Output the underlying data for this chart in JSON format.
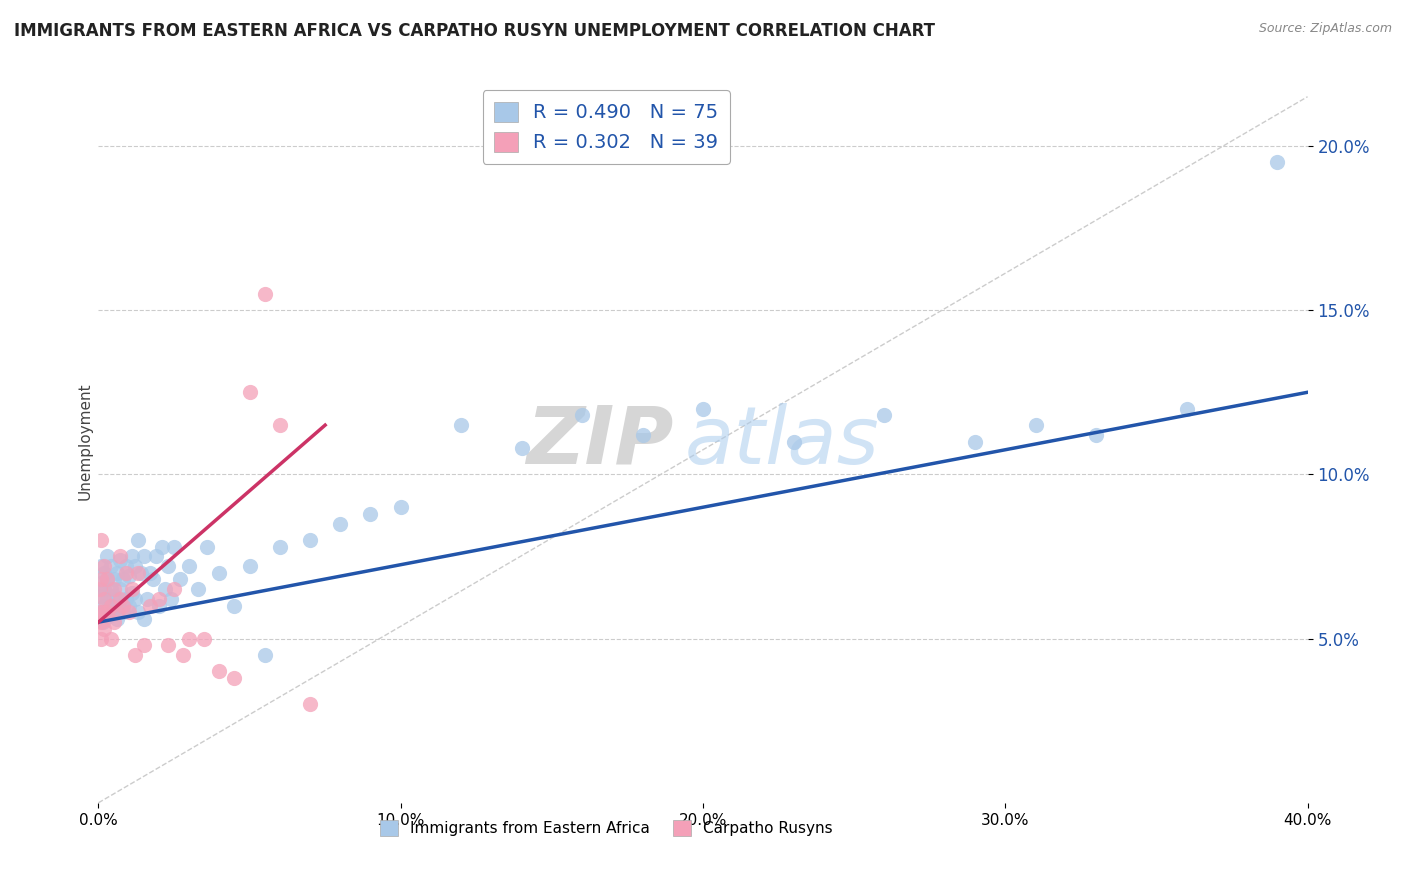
{
  "title": "IMMIGRANTS FROM EASTERN AFRICA VS CARPATHO RUSYN UNEMPLOYMENT CORRELATION CHART",
  "source_text": "Source: ZipAtlas.com",
  "xlabel_blue": "Immigrants from Eastern Africa",
  "xlabel_pink": "Carpatho Rusyns",
  "ylabel": "Unemployment",
  "R_blue": 0.49,
  "N_blue": 75,
  "R_pink": 0.302,
  "N_pink": 39,
  "blue_color": "#A8C8E8",
  "pink_color": "#F4A0B8",
  "trend_blue": "#2255AA",
  "trend_pink": "#CC3366",
  "watermark_zip": "ZIP",
  "watermark_atlas": "atlas",
  "xlim": [
    0.0,
    0.4
  ],
  "ylim": [
    0.0,
    0.22
  ],
  "x_ticks": [
    0.0,
    0.1,
    0.2,
    0.3,
    0.4
  ],
  "x_tick_labels": [
    "0.0%",
    "10.0%",
    "20.0%",
    "30.0%",
    "40.0%"
  ],
  "y_ticks": [
    0.05,
    0.1,
    0.15,
    0.2
  ],
  "y_tick_labels": [
    "5.0%",
    "10.0%",
    "15.0%",
    "20.0%"
  ],
  "blue_scatter_x": [
    0.0005,
    0.001,
    0.001,
    0.001,
    0.0015,
    0.002,
    0.002,
    0.002,
    0.0025,
    0.003,
    0.003,
    0.003,
    0.0035,
    0.004,
    0.004,
    0.004,
    0.005,
    0.005,
    0.005,
    0.006,
    0.006,
    0.006,
    0.007,
    0.007,
    0.007,
    0.008,
    0.008,
    0.009,
    0.009,
    0.01,
    0.01,
    0.011,
    0.011,
    0.012,
    0.012,
    0.013,
    0.013,
    0.014,
    0.015,
    0.015,
    0.016,
    0.017,
    0.018,
    0.019,
    0.02,
    0.021,
    0.022,
    0.023,
    0.024,
    0.025,
    0.027,
    0.03,
    0.033,
    0.036,
    0.04,
    0.045,
    0.05,
    0.055,
    0.06,
    0.07,
    0.08,
    0.09,
    0.1,
    0.12,
    0.14,
    0.16,
    0.18,
    0.2,
    0.23,
    0.26,
    0.29,
    0.31,
    0.33,
    0.36,
    0.39
  ],
  "blue_scatter_y": [
    0.063,
    0.058,
    0.067,
    0.072,
    0.055,
    0.06,
    0.065,
    0.07,
    0.058,
    0.062,
    0.068,
    0.075,
    0.057,
    0.06,
    0.065,
    0.072,
    0.058,
    0.063,
    0.068,
    0.056,
    0.062,
    0.07,
    0.059,
    0.065,
    0.074,
    0.058,
    0.068,
    0.062,
    0.072,
    0.06,
    0.069,
    0.064,
    0.075,
    0.062,
    0.072,
    0.058,
    0.08,
    0.07,
    0.056,
    0.075,
    0.062,
    0.07,
    0.068,
    0.075,
    0.06,
    0.078,
    0.065,
    0.072,
    0.062,
    0.078,
    0.068,
    0.072,
    0.065,
    0.078,
    0.07,
    0.06,
    0.072,
    0.045,
    0.078,
    0.08,
    0.085,
    0.088,
    0.09,
    0.115,
    0.108,
    0.118,
    0.112,
    0.12,
    0.11,
    0.118,
    0.11,
    0.115,
    0.112,
    0.12,
    0.195
  ],
  "pink_scatter_x": [
    0.0003,
    0.0005,
    0.0008,
    0.001,
    0.001,
    0.001,
    0.0015,
    0.002,
    0.002,
    0.002,
    0.003,
    0.003,
    0.004,
    0.004,
    0.005,
    0.005,
    0.006,
    0.007,
    0.007,
    0.008,
    0.009,
    0.01,
    0.011,
    0.012,
    0.013,
    0.015,
    0.017,
    0.02,
    0.023,
    0.025,
    0.028,
    0.03,
    0.035,
    0.04,
    0.045,
    0.05,
    0.055,
    0.06,
    0.07
  ],
  "pink_scatter_y": [
    0.058,
    0.065,
    0.05,
    0.055,
    0.068,
    0.08,
    0.058,
    0.053,
    0.062,
    0.072,
    0.058,
    0.068,
    0.05,
    0.06,
    0.055,
    0.065,
    0.058,
    0.062,
    0.075,
    0.06,
    0.07,
    0.058,
    0.065,
    0.045,
    0.07,
    0.048,
    0.06,
    0.062,
    0.048,
    0.065,
    0.045,
    0.05,
    0.05,
    0.04,
    0.038,
    0.125,
    0.155,
    0.115,
    0.03
  ],
  "blue_trend_x": [
    0.0,
    0.4
  ],
  "blue_trend_y": [
    0.055,
    0.125
  ],
  "pink_trend_x": [
    0.0,
    0.075
  ],
  "pink_trend_y": [
    0.055,
    0.115
  ]
}
